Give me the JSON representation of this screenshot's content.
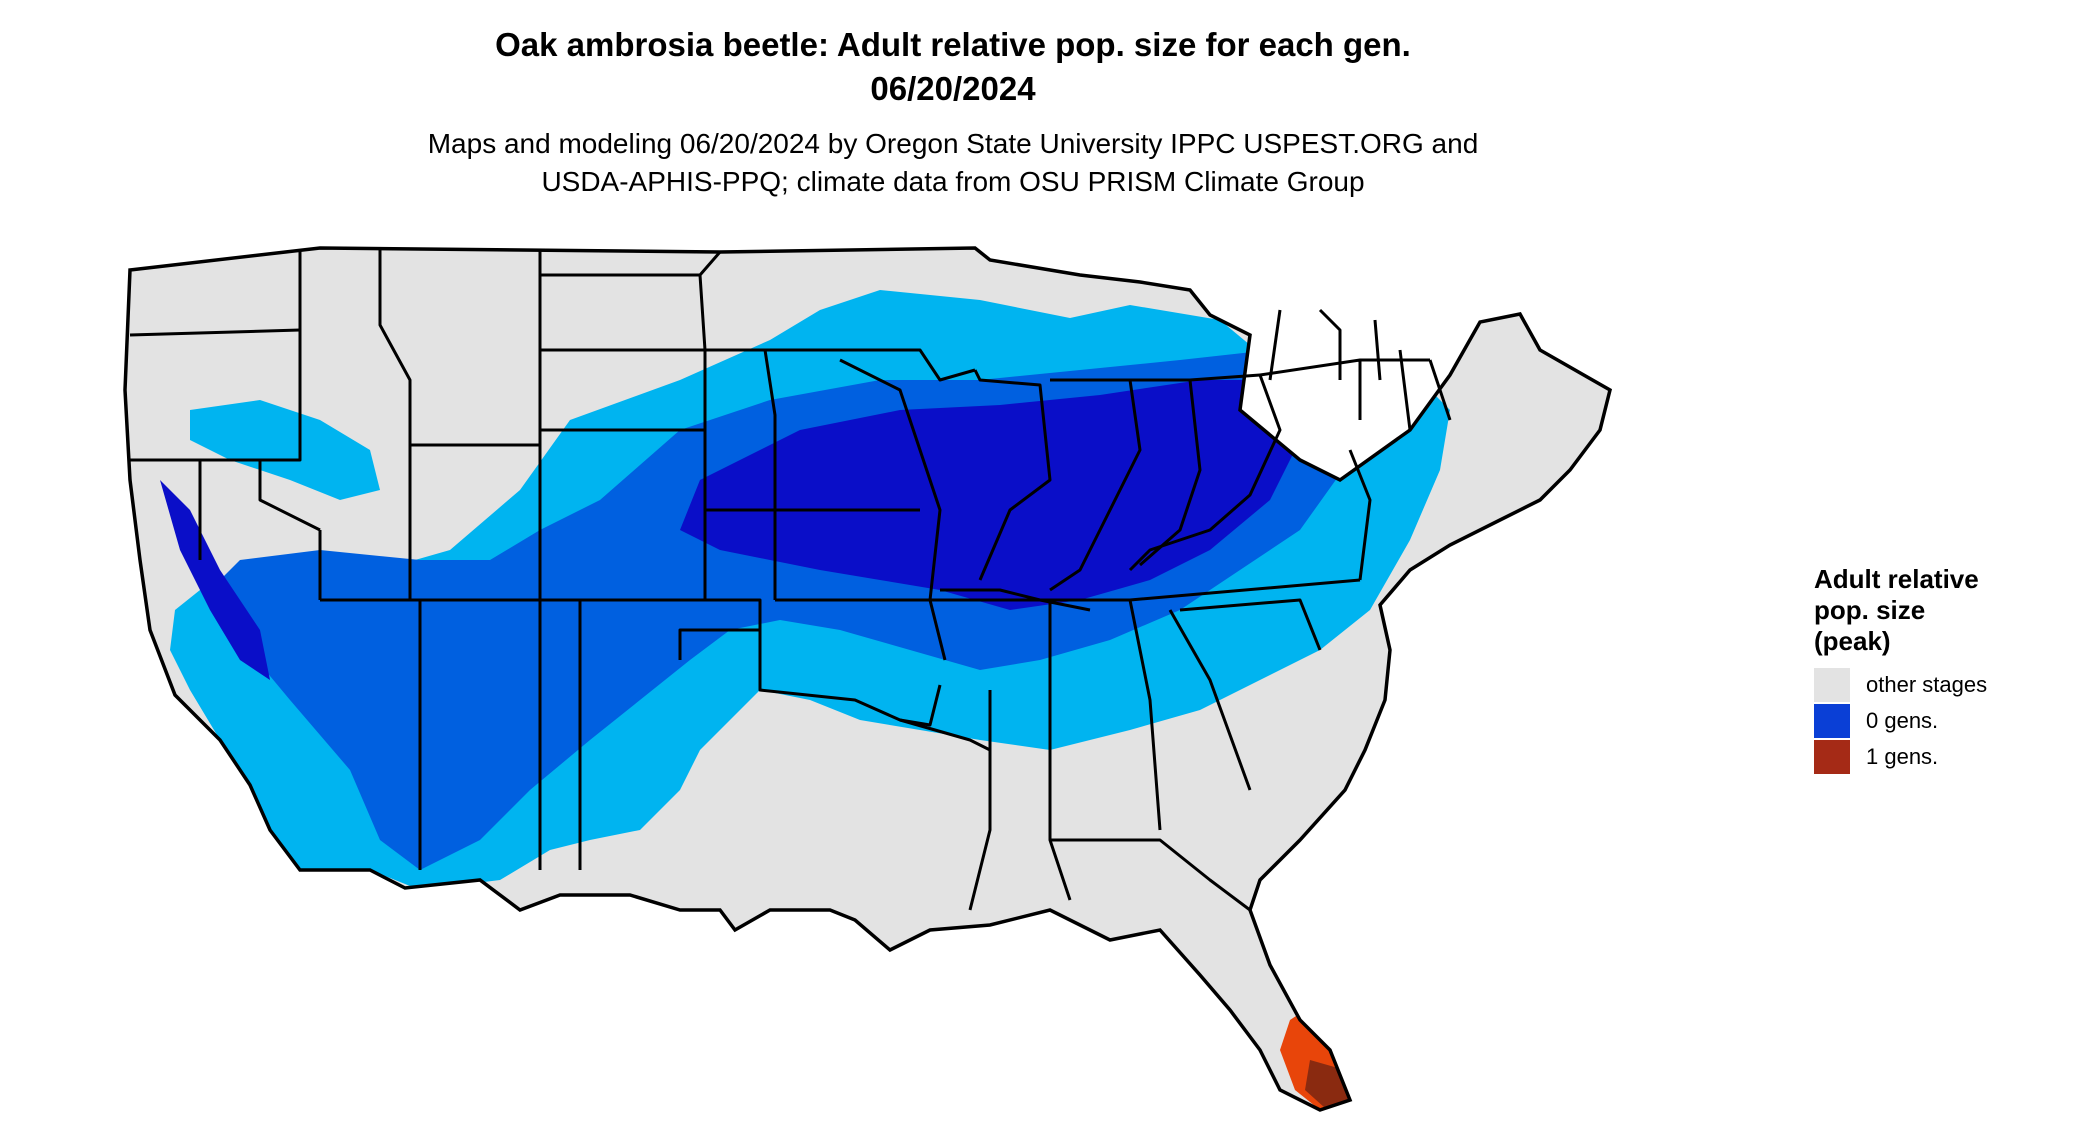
{
  "title": {
    "line1": "Oak ambrosia beetle: Adult relative pop. size for each gen.",
    "line2": "06/20/2024"
  },
  "subtitle": {
    "line1": "Maps and modeling 06/20/2024 by Oregon State University IPPC USPEST.ORG and",
    "line2": "USDA-APHIS-PPQ; climate data from OSU PRISM Climate Group"
  },
  "legend": {
    "title_line1": "Adult relative",
    "title_line2": "pop. size",
    "title_line3": "(peak)",
    "items": [
      {
        "label": "other stages",
        "color": "#e3e3e3"
      },
      {
        "label": "0 gens.",
        "color": "#0a3fd6"
      },
      {
        "label": "1 gens.",
        "color": "#a52a16"
      }
    ]
  },
  "colors": {
    "land_base": "#e3e3e3",
    "light_blue": "#00b4f0",
    "medium_blue": "#0060e0",
    "dark_blue": "#0a0ec8",
    "orange_red": "#e8450a",
    "dark_red": "#8a2a10",
    "border": "#000000"
  }
}
